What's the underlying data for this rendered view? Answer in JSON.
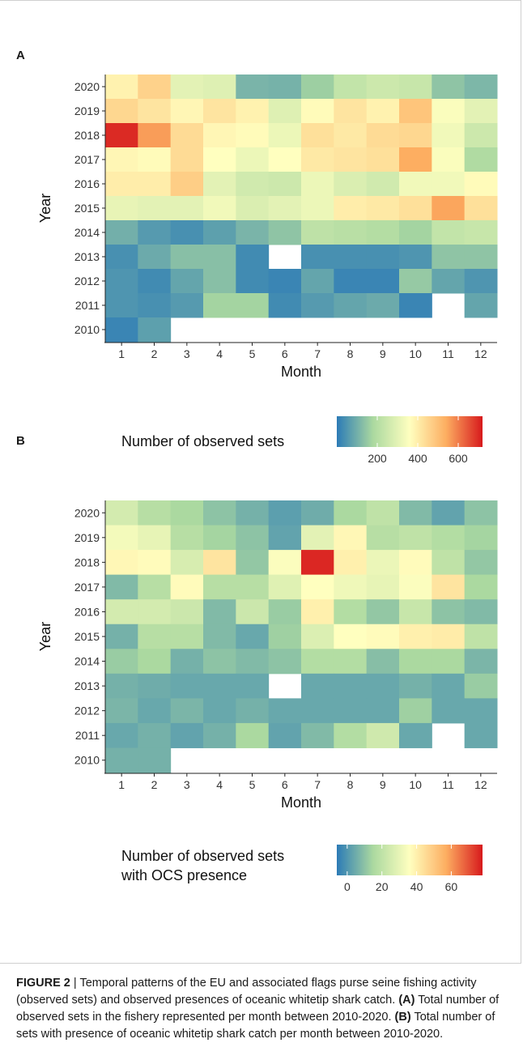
{
  "chart_data": [
    {
      "type": "heatmap",
      "panel": "A",
      "xlabel": "Month",
      "ylabel": "Year",
      "x": [
        "1",
        "2",
        "3",
        "4",
        "5",
        "6",
        "7",
        "8",
        "9",
        "10",
        "11",
        "12"
      ],
      "y": [
        "2020",
        "2019",
        "2018",
        "2017",
        "2016",
        "2015",
        "2014",
        "2013",
        "2012",
        "2011",
        "2010"
      ],
      "values": [
        [
          390,
          460,
          300,
          290,
          110,
          105,
          160,
          230,
          250,
          240,
          140,
          115
        ],
        [
          450,
          420,
          380,
          420,
          390,
          290,
          370,
          420,
          390,
          490,
          350,
          300
        ],
        [
          700,
          560,
          440,
          380,
          370,
          320,
          430,
          410,
          440,
          450,
          330,
          250
        ],
        [
          380,
          370,
          440,
          360,
          320,
          360,
          410,
          420,
          430,
          540,
          350,
          190
        ],
        [
          400,
          400,
          470,
          300,
          260,
          250,
          320,
          280,
          260,
          330,
          330,
          370
        ],
        [
          310,
          300,
          300,
          330,
          280,
          300,
          320,
          400,
          410,
          430,
          550,
          430
        ],
        [
          100,
          60,
          40,
          70,
          110,
          140,
          220,
          210,
          200,
          170,
          230,
          240
        ],
        [
          40,
          90,
          130,
          130,
          30,
          null,
          40,
          40,
          40,
          50,
          140,
          140
        ],
        [
          50,
          30,
          80,
          130,
          30,
          20,
          80,
          20,
          20,
          150,
          80,
          50
        ],
        [
          50,
          40,
          60,
          170,
          170,
          30,
          60,
          80,
          90,
          20,
          null,
          80
        ],
        [
          20,
          70,
          null,
          null,
          null,
          null,
          null,
          null,
          null,
          null,
          null,
          null
        ]
      ],
      "colorbar": {
        "title": "Number of observed sets",
        "ticks": [
          "200",
          "400",
          "600"
        ],
        "tick_values": [
          200,
          400,
          600
        ],
        "min": 0,
        "max": 720
      }
    },
    {
      "type": "heatmap",
      "panel": "B",
      "xlabel": "Month",
      "ylabel": "Year",
      "x": [
        "1",
        "2",
        "3",
        "4",
        "5",
        "6",
        "7",
        "8",
        "9",
        "10",
        "11",
        "12"
      ],
      "y": [
        "2020",
        "2019",
        "2018",
        "2017",
        "2016",
        "2015",
        "2014",
        "2013",
        "2012",
        "2011",
        "2010"
      ],
      "values": [
        [
          25,
          18,
          15,
          10,
          6,
          2,
          5,
          15,
          20,
          8,
          3,
          10
        ],
        [
          33,
          30,
          18,
          14,
          10,
          3,
          29,
          38,
          18,
          20,
          17,
          14
        ],
        [
          38,
          37,
          26,
          43,
          11,
          35,
          76,
          40,
          31,
          37,
          20,
          11
        ],
        [
          8,
          18,
          37,
          18,
          18,
          28,
          36,
          32,
          30,
          35,
          43,
          15
        ],
        [
          25,
          25,
          23,
          8,
          23,
          12,
          40,
          17,
          11,
          22,
          10,
          8
        ],
        [
          6,
          18,
          18,
          8,
          4,
          13,
          27,
          36,
          37,
          40,
          41,
          20
        ],
        [
          12,
          15,
          6,
          10,
          8,
          10,
          17,
          17,
          9,
          15,
          15,
          7
        ],
        [
          6,
          5,
          4,
          4,
          4,
          null,
          4,
          4,
          4,
          6,
          4,
          12
        ],
        [
          7,
          4,
          7,
          4,
          6,
          4,
          4,
          4,
          4,
          13,
          4,
          4
        ],
        [
          4,
          6,
          3,
          6,
          15,
          3,
          8,
          17,
          24,
          4,
          null,
          4
        ],
        [
          6,
          6,
          null,
          null,
          null,
          null,
          null,
          null,
          null,
          null,
          null,
          null
        ]
      ],
      "colorbar": {
        "title": "Number of observed sets\nwith OCS presence",
        "ticks": [
          "0",
          "20",
          "40",
          "60"
        ],
        "tick_values": [
          0,
          20,
          40,
          60
        ],
        "min": -6,
        "max": 78
      }
    }
  ],
  "panel_labels": [
    "A",
    "B"
  ],
  "colorbar_titles": {
    "a": "Number of observed sets",
    "b_line1": "Number of observed sets",
    "b_line2": "with OCS presence"
  },
  "palette": [
    "#2c7bb6",
    "#abd9a0",
    "#ffffbf",
    "#fdae61",
    "#d7191c"
  ],
  "caption": {
    "label": "FIGURE 2",
    "separator": " | ",
    "intro": "Temporal patterns of the EU and associated flags purse seine fishing activity (observed sets) and observed presences of oceanic whitetip shark catch.",
    "a_tag": "(A)",
    "a_text": "Total number of observed sets in the fishery represented per month between 2010-2020.",
    "b_tag": "(B)",
    "b_text": "Total number of sets with presence of oceanic whitetip shark catch per month between 2010-2020."
  }
}
